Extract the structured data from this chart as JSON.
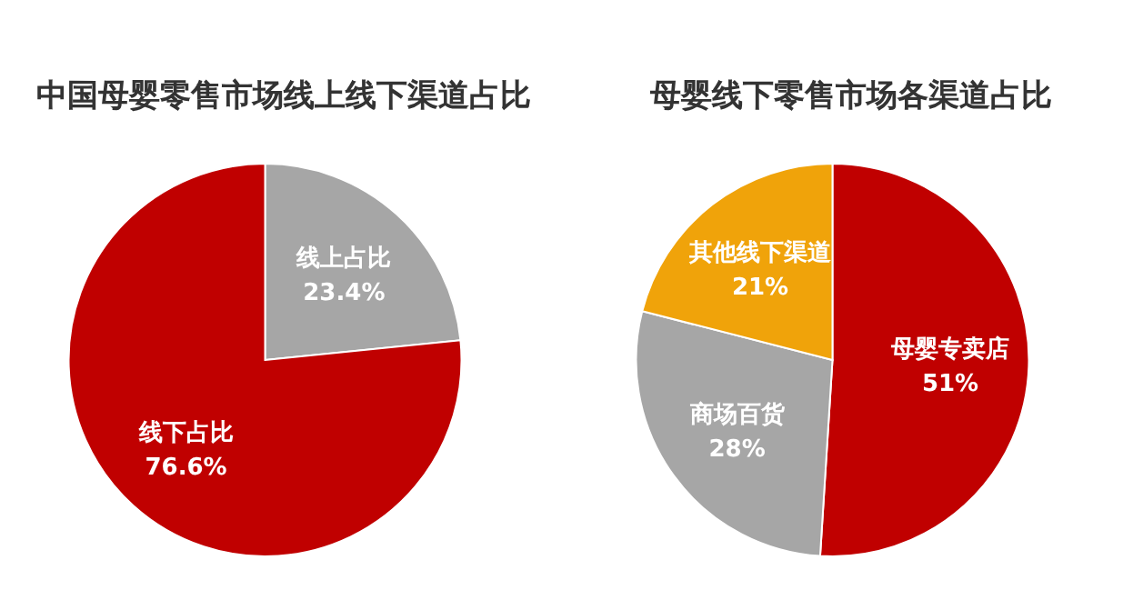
{
  "chart_data": [
    {
      "type": "pie",
      "title": "中国母婴零售市场线上线下渠道占比",
      "categories": [
        "线上占比",
        "线下占比"
      ],
      "values": [
        23.4,
        76.6
      ],
      "colors": [
        "#a6a6a6",
        "#c00000"
      ],
      "value_labels": [
        "23.4%",
        "76.6%"
      ]
    },
    {
      "type": "pie",
      "title": "母婴线下零售市场各渠道占比",
      "categories": [
        "母婴专卖店",
        "商场百货",
        "其他线下渠道"
      ],
      "values": [
        51,
        28,
        21
      ],
      "colors": [
        "#c00000",
        "#a6a6a6",
        "#f0a30a"
      ],
      "value_labels": [
        "51%",
        "28%",
        "21%"
      ]
    }
  ]
}
